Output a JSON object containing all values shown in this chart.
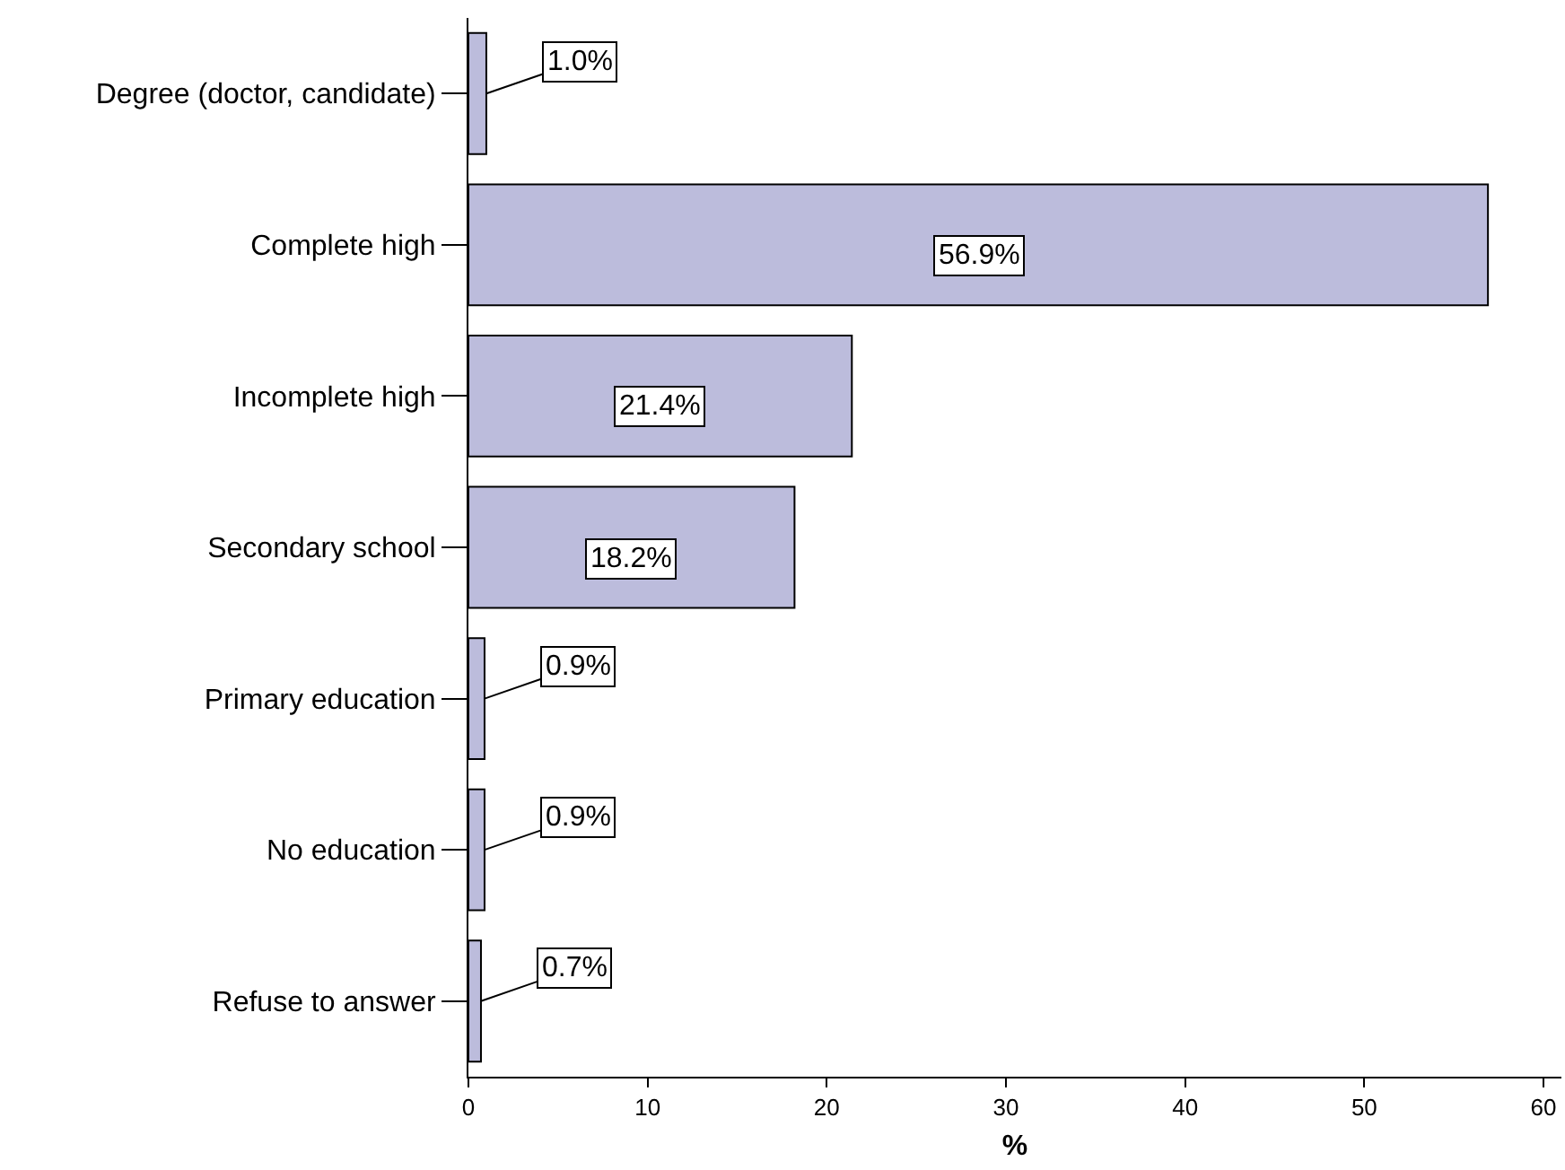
{
  "chart_data": {
    "type": "bar",
    "orientation": "horizontal",
    "xlabel": "%",
    "categories": [
      "Degree (doctor, candidate)",
      "Complete high",
      "Incomplete high",
      "Secondary school",
      "Primary education",
      "No education",
      "Refuse to answer"
    ],
    "values": [
      1.0,
      56.9,
      21.4,
      18.2,
      0.9,
      0.9,
      0.7
    ],
    "value_labels": [
      "1.0%",
      "56.9%",
      "21.4%",
      "18.2%",
      "0.9%",
      "0.9%",
      "0.7%"
    ],
    "color": "#bcbcdc",
    "xlim": [
      0,
      61
    ],
    "xticks": [
      0,
      10,
      20,
      30,
      40,
      50,
      60
    ],
    "grid": false,
    "legend": false
  }
}
